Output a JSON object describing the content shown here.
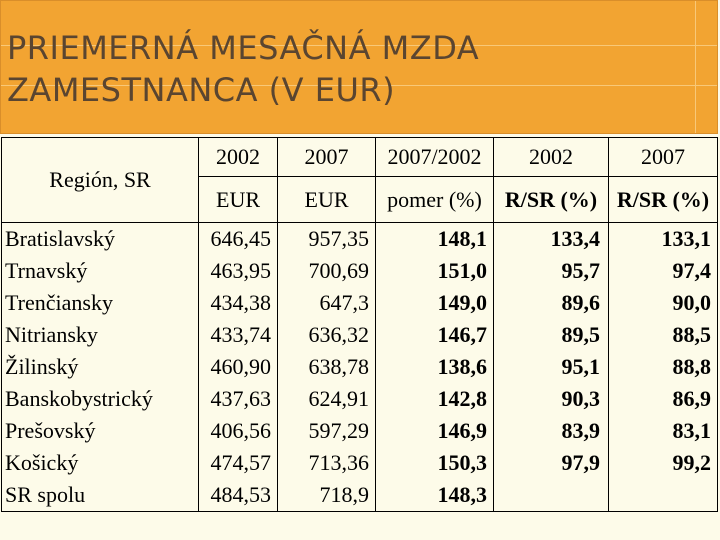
{
  "title": {
    "line1": "PRIEMERNÁ MESAČNÁ MZDA",
    "line2": "ZAMESTNANCA (V EUR)"
  },
  "header": {
    "region_label": "Región, SR",
    "row1": [
      "2002",
      "2007",
      "2007/2002",
      "2002",
      "2007"
    ],
    "row2": [
      "EUR",
      "EUR",
      "pomer (%)",
      "R/SR (%)",
      "R/SR (%)"
    ]
  },
  "regions": [
    "Bratislavský",
    "Trnavský",
    "Trenčiansky",
    "Nitriansky",
    "Žilinský",
    "Banskobystrický",
    "Prešovský",
    "Košický",
    "SR spolu"
  ],
  "eur_2002": [
    "646,45",
    "463,95",
    "434,38",
    "433,74",
    "460,90",
    "437,63",
    "406,56",
    "474,57",
    "484,53"
  ],
  "eur_2007": [
    "957,35",
    "700,69",
    "647,3",
    "636,32",
    "638,78",
    "624,91",
    "597,29",
    "713,36",
    "718,9"
  ],
  "ratio_2007_2002": [
    "148,1",
    "151,0",
    "149,0",
    "146,7",
    "138,6",
    "142,8",
    "146,9",
    "150,3",
    "148,3"
  ],
  "rsr_2002": [
    "133,4",
    "95,7",
    "89,6",
    "89,5",
    "95,1",
    "90,3",
    "83,9",
    "97,9"
  ],
  "rsr_2007": [
    "133,1",
    "97,4",
    "90,0",
    "88,5",
    "88,8",
    "86,9",
    "83,1",
    "99,2"
  ]
}
